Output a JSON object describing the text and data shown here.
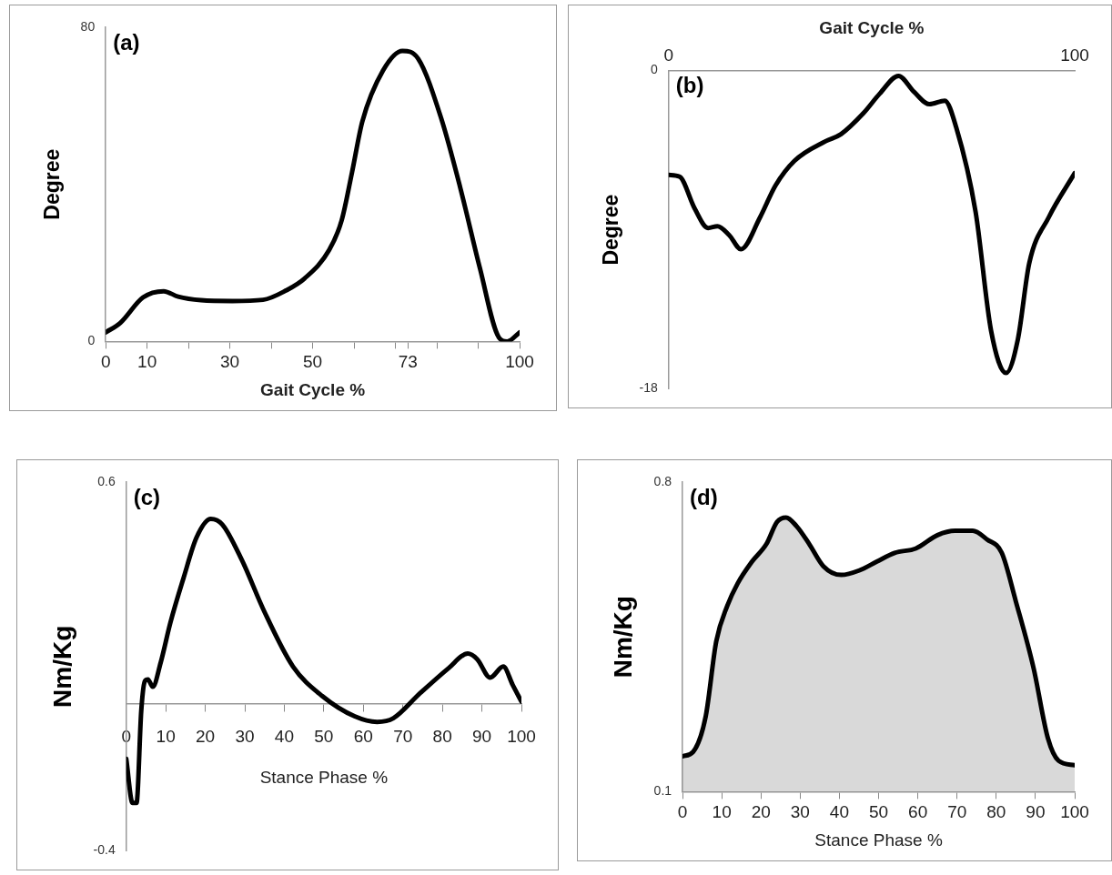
{
  "chart_data": [
    {
      "type": "line",
      "title": "(a)",
      "xlabel": "Gait Cycle %",
      "ylabel": "Degree",
      "marker": "none",
      "grid": false,
      "xlim": [
        0,
        100
      ],
      "xticks": [
        0,
        10,
        {
          "value": 20,
          "label": null
        },
        30,
        {
          "value": 40,
          "label": null
        },
        50,
        {
          "value": 60,
          "label": null
        },
        {
          "value": 70,
          "label": null
        },
        73,
        {
          "value": 80,
          "label": null
        },
        {
          "value": 90,
          "label": null
        },
        100
      ],
      "ylim": [
        0,
        80
      ],
      "yticks": [
        0,
        80
      ],
      "series": [
        {
          "color": "#000000",
          "x": [
            0,
            3.5,
            9,
            14,
            17.5,
            23,
            30.6,
            38,
            43.6,
            48,
            54,
            57,
            59.5,
            62,
            67,
            71.7,
            75.5,
            81,
            85.7,
            90.4,
            95,
            97,
            100
          ],
          "values": [
            2.3,
            4.7,
            11.2,
            12.8,
            11.4,
            10.5,
            10.3,
            10.6,
            13,
            16,
            23.3,
            30.8,
            43,
            56,
            69,
            74,
            72,
            57,
            39,
            18.7,
            1,
            0,
            2.3
          ]
        }
      ]
    },
    {
      "type": "line",
      "title": "(b)",
      "xlabel": "Gait Cycle %",
      "ylabel": "Degree",
      "marker": "none",
      "grid": false,
      "xlim": [
        0,
        100
      ],
      "xticks": [
        0,
        100
      ],
      "ylim": [
        -18,
        0
      ],
      "yticks": [
        0,
        -18
      ],
      "series": [
        {
          "color": "#000000",
          "x": [
            0,
            2.7,
            6.4,
            9.7,
            12,
            14.9,
            17.8,
            22.5,
            26.3,
            31,
            38.6,
            42.4,
            48,
            52,
            56.6,
            60.4,
            64.2,
            68,
            70.8,
            75.6,
            79.4,
            83.1,
            86,
            88.8,
            93.6,
            100
          ],
          "values": [
            -5.9,
            -6.0,
            -7.8,
            -8.9,
            -8.8,
            -9.3,
            -10.1,
            -8.3,
            -6.5,
            -5.1,
            -4.0,
            -3.6,
            -2.4,
            -1.3,
            -0.3,
            -1.2,
            -1.9,
            -1.7,
            -3.2,
            -8.0,
            -14.7,
            -17.1,
            -15.2,
            -10.9,
            -8.3,
            -5.8
          ]
        }
      ]
    },
    {
      "type": "line",
      "title": "(c)",
      "xlabel": "Stance Phase %",
      "ylabel": "Nm/Kg",
      "marker": "none",
      "grid": false,
      "xlim": [
        0,
        100
      ],
      "xticks": [
        0,
        10,
        20,
        30,
        40,
        50,
        60,
        70,
        80,
        90,
        100
      ],
      "ylim": [
        -0.4,
        0.6
      ],
      "yticks": [
        0.6,
        -0.4
      ],
      "series": [
        {
          "color": "#000000",
          "x": [
            0,
            1.6,
            2.6,
            3.8,
            4.7,
            5.5,
            6.7,
            8.7,
            11.2,
            14.5,
            17.8,
            21.4,
            24.3,
            29.2,
            34.9,
            42.2,
            49.6,
            57.8,
            63.5,
            67.6,
            74.1,
            81.5,
            86.4,
            88.8,
            92.1,
            95.4,
            97.8,
            100
          ],
          "values": [
            -0.15,
            -0.27,
            -0.27,
            -0.02,
            0.06,
            0.065,
            0.045,
            0.11,
            0.22,
            0.34,
            0.45,
            0.5,
            0.485,
            0.39,
            0.25,
            0.1,
            0.02,
            -0.035,
            -0.05,
            -0.04,
            0.025,
            0.095,
            0.135,
            0.12,
            0.07,
            0.1,
            0.05,
            0.005
          ]
        }
      ]
    },
    {
      "type": "area",
      "title": "(d)",
      "xlabel": "Stance Phase %",
      "ylabel": "Nm/Kg",
      "marker": "none",
      "grid": false,
      "xlim": [
        0,
        100
      ],
      "xticks": [
        0,
        10,
        20,
        30,
        40,
        50,
        60,
        70,
        80,
        90,
        100
      ],
      "ylim": [
        0.1,
        0.8
      ],
      "yticks": [
        0.8,
        0.1
      ],
      "series": [
        {
          "color": "#000000",
          "x": [
            0,
            2.7,
            5.9,
            8.6,
            11.4,
            14,
            17.7,
            21.4,
            24.1,
            26.4,
            29.1,
            32.3,
            35.9,
            40.5,
            45,
            49.5,
            54.1,
            59.5,
            65,
            69.5,
            74,
            77.7,
            81.4,
            85,
            89.5,
            93.2,
            95.9,
            100
          ],
          "values": [
            0.18,
            0.19,
            0.27,
            0.44,
            0.52,
            0.57,
            0.62,
            0.66,
            0.71,
            0.72,
            0.7,
            0.66,
            0.61,
            0.59,
            0.6,
            0.62,
            0.64,
            0.65,
            0.68,
            0.69,
            0.69,
            0.67,
            0.64,
            0.53,
            0.38,
            0.22,
            0.17,
            0.16
          ]
        }
      ]
    }
  ]
}
